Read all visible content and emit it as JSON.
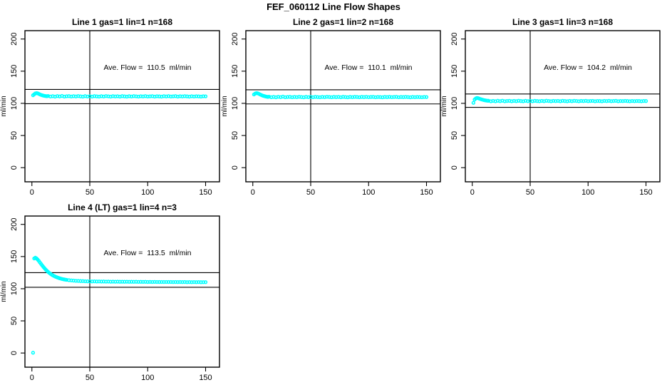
{
  "page": {
    "title": "FEF_060112  Line Flow Shapes",
    "background": "#FFFFFF"
  },
  "colors": {
    "series": "#00FFFF",
    "axis": "#000000",
    "text": "#000000"
  },
  "axes": {
    "ylabel": "ml/min",
    "xlabel": "",
    "x_ticks": [
      0,
      50,
      100,
      150
    ],
    "y_ticks": [
      0,
      50,
      100,
      150,
      200
    ],
    "xlim": [
      -6,
      162
    ],
    "ylim": [
      -22,
      213
    ],
    "vline_x": 50,
    "grid": false
  },
  "chart_data": [
    {
      "type": "scatter",
      "marker": "open-circle",
      "title": "Line 1 gas=1 lin=1 n=168",
      "annotation": "Ave. Flow =  110.5  ml/min",
      "ave_flow": 110.5,
      "n": 168,
      "hlines": [
        121.6,
        99.5
      ],
      "points": [
        [
          1,
          112.6
        ],
        [
          2,
          114.1
        ],
        [
          3,
          115.4
        ],
        [
          4,
          115.9
        ],
        [
          5,
          115.5
        ],
        [
          6,
          114.7
        ],
        [
          7,
          113.8
        ],
        [
          8,
          113.1
        ],
        [
          9,
          112.5
        ],
        [
          10,
          112.0
        ],
        [
          11,
          111.6
        ],
        [
          12,
          111.3
        ],
        [
          13,
          111.1
        ],
        [
          14,
          111.4
        ],
        [
          16,
          110.6
        ],
        [
          18,
          111.1
        ],
        [
          20,
          110.4
        ],
        [
          22,
          111.3
        ],
        [
          24,
          110.7
        ],
        [
          26,
          111.5
        ],
        [
          28,
          110.5
        ],
        [
          30,
          111.0
        ],
        [
          32,
          111.2
        ],
        [
          34,
          110.6
        ],
        [
          36,
          111.1
        ],
        [
          38,
          110.7
        ],
        [
          40,
          111.3
        ],
        [
          42,
          110.8
        ],
        [
          44,
          110.4
        ],
        [
          46,
          111.2
        ],
        [
          48,
          110.6
        ],
        [
          50,
          111.0
        ],
        [
          52,
          110.5
        ],
        [
          54,
          111.2
        ],
        [
          56,
          110.8
        ],
        [
          58,
          110.5
        ],
        [
          60,
          111.1
        ],
        [
          62,
          110.6
        ],
        [
          64,
          111.3
        ],
        [
          66,
          110.9
        ],
        [
          68,
          110.5
        ],
        [
          70,
          111.1
        ],
        [
          72,
          110.7
        ],
        [
          74,
          111.0
        ],
        [
          76,
          110.5
        ],
        [
          78,
          111.2
        ],
        [
          80,
          110.8
        ],
        [
          82,
          110.4
        ],
        [
          84,
          111.1
        ],
        [
          86,
          110.6
        ],
        [
          88,
          111.2
        ],
        [
          90,
          110.9
        ],
        [
          92,
          110.5
        ],
        [
          94,
          111.0
        ],
        [
          96,
          110.7
        ],
        [
          98,
          111.2
        ],
        [
          100,
          110.6
        ],
        [
          102,
          110.9
        ],
        [
          104,
          111.1
        ],
        [
          106,
          110.5
        ],
        [
          108,
          111.0
        ],
        [
          110,
          110.8
        ],
        [
          112,
          110.4
        ],
        [
          114,
          111.1
        ],
        [
          116,
          110.7
        ],
        [
          118,
          111.2
        ],
        [
          120,
          110.6
        ],
        [
          122,
          110.9
        ],
        [
          124,
          111.2
        ],
        [
          126,
          110.5
        ],
        [
          128,
          111.0
        ],
        [
          130,
          110.7
        ],
        [
          132,
          111.1
        ],
        [
          134,
          110.8
        ],
        [
          136,
          110.4
        ],
        [
          138,
          111.0
        ],
        [
          140,
          110.6
        ],
        [
          142,
          111.0
        ],
        [
          144,
          110.8
        ],
        [
          146,
          110.5
        ],
        [
          148,
          111.0
        ],
        [
          150,
          110.9
        ]
      ]
    },
    {
      "type": "scatter",
      "marker": "open-circle",
      "title": "Line 2 gas=1 lin=2 n=168",
      "annotation": "Ave. Flow =  110.1  ml/min",
      "ave_flow": 110.1,
      "n": 168,
      "hlines": [
        121.1,
        99.1
      ],
      "points": [
        [
          1,
          113.8
        ],
        [
          2,
          115.2
        ],
        [
          3,
          115.9
        ],
        [
          4,
          115.7
        ],
        [
          5,
          115.0
        ],
        [
          6,
          114.1
        ],
        [
          7,
          113.2
        ],
        [
          8,
          112.4
        ],
        [
          9,
          111.7
        ],
        [
          10,
          111.2
        ],
        [
          11,
          110.7
        ],
        [
          12,
          110.3
        ],
        [
          13,
          110.0
        ],
        [
          14,
          110.3
        ],
        [
          16,
          109.5
        ],
        [
          18,
          110.0
        ],
        [
          20,
          109.4
        ],
        [
          22,
          110.2
        ],
        [
          24,
          109.6
        ],
        [
          26,
          110.4
        ],
        [
          28,
          109.5
        ],
        [
          30,
          109.9
        ],
        [
          32,
          110.1
        ],
        [
          34,
          109.5
        ],
        [
          36,
          110.0
        ],
        [
          38,
          109.6
        ],
        [
          40,
          110.2
        ],
        [
          42,
          109.8
        ],
        [
          44,
          109.4
        ],
        [
          46,
          110.1
        ],
        [
          48,
          109.6
        ],
        [
          50,
          110.0
        ],
        [
          52,
          109.5
        ],
        [
          54,
          110.1
        ],
        [
          56,
          109.8
        ],
        [
          58,
          109.5
        ],
        [
          60,
          110.0
        ],
        [
          62,
          109.6
        ],
        [
          64,
          110.2
        ],
        [
          66,
          109.9
        ],
        [
          68,
          109.5
        ],
        [
          70,
          110.0
        ],
        [
          72,
          109.7
        ],
        [
          74,
          110.0
        ],
        [
          76,
          109.5
        ],
        [
          78,
          110.1
        ],
        [
          80,
          109.8
        ],
        [
          82,
          109.4
        ],
        [
          84,
          110.0
        ],
        [
          86,
          109.6
        ],
        [
          88,
          110.1
        ],
        [
          90,
          109.9
        ],
        [
          92,
          109.5
        ],
        [
          94,
          110.0
        ],
        [
          96,
          109.7
        ],
        [
          98,
          110.1
        ],
        [
          100,
          109.6
        ],
        [
          102,
          109.9
        ],
        [
          104,
          110.0
        ],
        [
          106,
          109.5
        ],
        [
          108,
          109.9
        ],
        [
          110,
          109.8
        ],
        [
          112,
          109.4
        ],
        [
          114,
          110.0
        ],
        [
          116,
          109.7
        ],
        [
          118,
          110.1
        ],
        [
          120,
          109.6
        ],
        [
          122,
          109.9
        ],
        [
          124,
          110.1
        ],
        [
          126,
          109.5
        ],
        [
          128,
          109.9
        ],
        [
          130,
          109.7
        ],
        [
          132,
          110.0
        ],
        [
          134,
          109.8
        ],
        [
          136,
          109.4
        ],
        [
          138,
          109.9
        ],
        [
          140,
          109.6
        ],
        [
          142,
          109.9
        ],
        [
          144,
          109.8
        ],
        [
          146,
          109.5
        ],
        [
          148,
          109.9
        ],
        [
          150,
          109.8
        ]
      ]
    },
    {
      "type": "scatter",
      "marker": "open-circle",
      "title": "Line 3 gas=1 lin=3 n=168",
      "annotation": "Ave. Flow =  104.2  ml/min",
      "ave_flow": 104.2,
      "n": 168,
      "hlines": [
        114.6,
        93.8
      ],
      "points": [
        [
          1,
          100.8
        ],
        [
          2,
          105.9
        ],
        [
          3,
          107.6
        ],
        [
          4,
          108.3
        ],
        [
          5,
          108.1
        ],
        [
          6,
          107.4
        ],
        [
          7,
          106.7
        ],
        [
          8,
          106.1
        ],
        [
          9,
          105.6
        ],
        [
          10,
          105.1
        ],
        [
          11,
          104.7
        ],
        [
          12,
          104.4
        ],
        [
          13,
          104.1
        ],
        [
          14,
          104.0
        ],
        [
          16,
          103.3
        ],
        [
          18,
          103.8
        ],
        [
          20,
          103.2
        ],
        [
          22,
          104.0
        ],
        [
          24,
          103.4
        ],
        [
          26,
          104.1
        ],
        [
          28,
          103.3
        ],
        [
          30,
          103.7
        ],
        [
          32,
          103.9
        ],
        [
          34,
          103.3
        ],
        [
          36,
          103.8
        ],
        [
          38,
          103.4
        ],
        [
          40,
          104.0
        ],
        [
          42,
          103.6
        ],
        [
          44,
          103.2
        ],
        [
          46,
          103.9
        ],
        [
          48,
          103.4
        ],
        [
          50,
          103.8
        ],
        [
          52,
          103.3
        ],
        [
          54,
          103.9
        ],
        [
          56,
          103.6
        ],
        [
          58,
          103.3
        ],
        [
          60,
          103.8
        ],
        [
          62,
          103.4
        ],
        [
          64,
          104.0
        ],
        [
          66,
          103.7
        ],
        [
          68,
          103.3
        ],
        [
          70,
          103.8
        ],
        [
          72,
          103.5
        ],
        [
          74,
          103.8
        ],
        [
          76,
          103.3
        ],
        [
          78,
          103.9
        ],
        [
          80,
          103.6
        ],
        [
          82,
          103.2
        ],
        [
          84,
          103.8
        ],
        [
          86,
          103.4
        ],
        [
          88,
          103.9
        ],
        [
          90,
          103.7
        ],
        [
          92,
          103.3
        ],
        [
          94,
          103.8
        ],
        [
          96,
          103.5
        ],
        [
          98,
          103.9
        ],
        [
          100,
          103.4
        ],
        [
          102,
          103.7
        ],
        [
          104,
          103.8
        ],
        [
          106,
          103.3
        ],
        [
          108,
          103.7
        ],
        [
          110,
          103.6
        ],
        [
          112,
          103.2
        ],
        [
          114,
          103.8
        ],
        [
          116,
          103.5
        ],
        [
          118,
          103.9
        ],
        [
          120,
          103.4
        ],
        [
          122,
          103.7
        ],
        [
          124,
          103.9
        ],
        [
          126,
          103.3
        ],
        [
          128,
          103.7
        ],
        [
          130,
          103.5
        ],
        [
          132,
          103.8
        ],
        [
          134,
          103.6
        ],
        [
          136,
          103.2
        ],
        [
          138,
          103.7
        ],
        [
          140,
          103.4
        ],
        [
          142,
          103.7
        ],
        [
          144,
          103.6
        ],
        [
          146,
          103.3
        ],
        [
          148,
          103.7
        ],
        [
          150,
          103.6
        ]
      ]
    },
    {
      "type": "scatter",
      "marker": "open-circle",
      "title": "Line 4 (LT) gas=1 lin=4 n=3",
      "annotation": "Ave. Flow =  113.5  ml/min",
      "ave_flow": 113.5,
      "n": 3,
      "hlines": [
        124.9,
        102.2
      ],
      "points": [
        [
          1,
          0.5
        ],
        [
          2,
          147.0
        ],
        [
          3,
          148.2
        ],
        [
          4,
          147.1
        ],
        [
          5,
          145.3
        ],
        [
          6,
          143.1
        ],
        [
          7,
          140.7
        ],
        [
          8,
          138.3
        ],
        [
          9,
          135.9
        ],
        [
          10,
          133.7
        ],
        [
          11,
          131.6
        ],
        [
          12,
          129.6
        ],
        [
          13,
          127.8
        ],
        [
          14,
          126.1
        ],
        [
          15,
          124.6
        ],
        [
          16,
          123.2
        ],
        [
          17,
          122.0
        ],
        [
          18,
          120.9
        ],
        [
          19,
          119.9
        ],
        [
          20,
          119.0
        ],
        [
          21,
          118.2
        ],
        [
          22,
          117.5
        ],
        [
          23,
          116.8
        ],
        [
          24,
          116.2
        ],
        [
          25,
          115.7
        ],
        [
          26,
          115.2
        ],
        [
          27,
          114.8
        ],
        [
          28,
          114.4
        ],
        [
          29,
          114.1
        ],
        [
          30,
          113.8
        ],
        [
          32,
          113.3
        ],
        [
          34,
          112.9
        ],
        [
          36,
          112.6
        ],
        [
          38,
          112.3
        ],
        [
          40,
          112.1
        ],
        [
          42,
          111.9
        ],
        [
          44,
          111.8
        ],
        [
          46,
          111.6
        ],
        [
          48,
          111.5
        ],
        [
          50,
          111.4
        ],
        [
          52,
          111.3
        ],
        [
          54,
          111.4
        ],
        [
          56,
          111.2
        ],
        [
          58,
          111.3
        ],
        [
          60,
          111.1
        ],
        [
          62,
          111.2
        ],
        [
          64,
          111.0
        ],
        [
          66,
          111.1
        ],
        [
          68,
          110.9
        ],
        [
          70,
          111.0
        ],
        [
          72,
          110.9
        ],
        [
          74,
          111.0
        ],
        [
          76,
          110.8
        ],
        [
          78,
          110.9
        ],
        [
          80,
          110.8
        ],
        [
          82,
          110.9
        ],
        [
          84,
          110.7
        ],
        [
          86,
          110.8
        ],
        [
          88,
          110.7
        ],
        [
          90,
          110.8
        ],
        [
          92,
          110.6
        ],
        [
          94,
          110.7
        ],
        [
          96,
          110.6
        ],
        [
          98,
          110.7
        ],
        [
          100,
          110.5
        ],
        [
          102,
          110.6
        ],
        [
          104,
          110.5
        ],
        [
          106,
          110.6
        ],
        [
          108,
          110.5
        ],
        [
          110,
          110.4
        ],
        [
          112,
          110.5
        ],
        [
          114,
          110.4
        ],
        [
          116,
          110.5
        ],
        [
          118,
          110.4
        ],
        [
          120,
          110.5
        ],
        [
          122,
          110.3
        ],
        [
          124,
          110.4
        ],
        [
          126,
          110.3
        ],
        [
          128,
          110.4
        ],
        [
          130,
          110.3
        ],
        [
          132,
          110.4
        ],
        [
          134,
          110.2
        ],
        [
          136,
          110.3
        ],
        [
          138,
          110.2
        ],
        [
          140,
          110.3
        ],
        [
          142,
          110.2
        ],
        [
          144,
          110.3
        ],
        [
          146,
          110.1
        ],
        [
          148,
          110.2
        ],
        [
          150,
          110.2
        ]
      ]
    }
  ]
}
